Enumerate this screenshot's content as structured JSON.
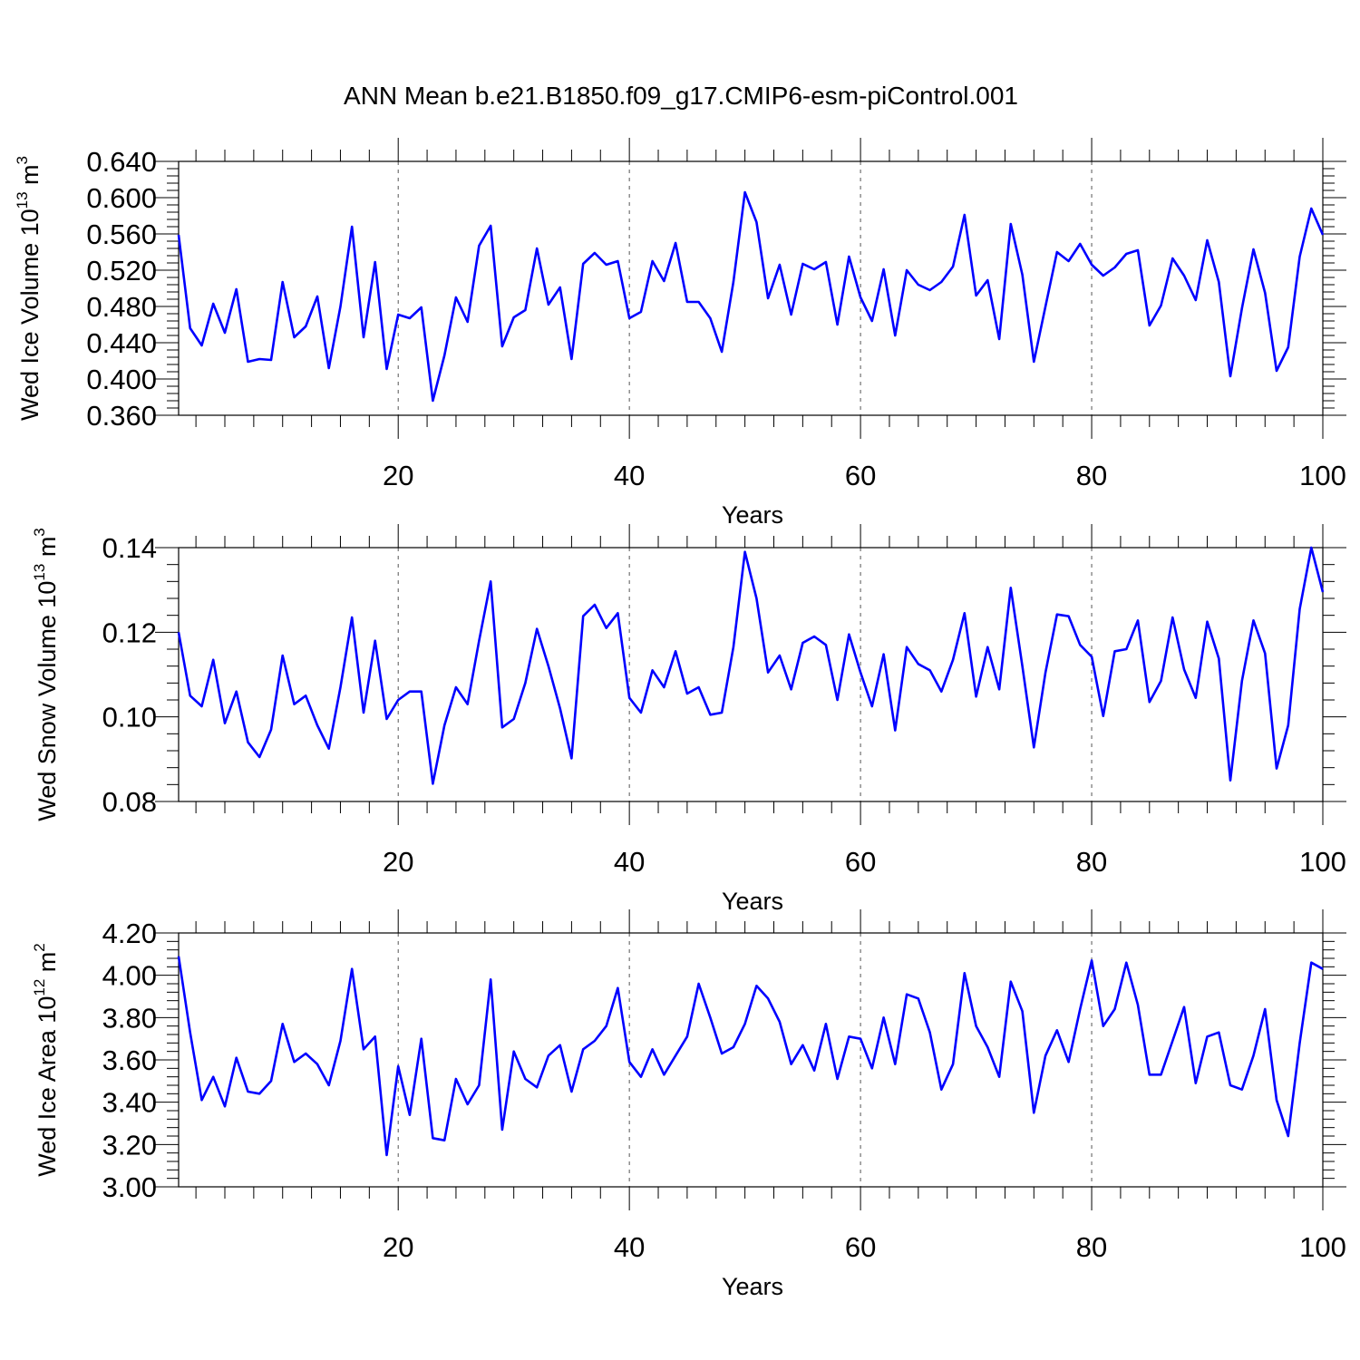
{
  "figure": {
    "title": "ANN Mean b.e21.B1850.f09_g17.CMIP6-esm-piControl.001"
  },
  "chart_data": [
    {
      "type": "line",
      "id": "ice-volume",
      "xlabel": "Years",
      "ylabel": {
        "text": "Wed Ice Volume 10",
        "sup": "13",
        "unit": " m",
        "unit_sup": "3"
      },
      "xlim": [
        1,
        100
      ],
      "ylim": [
        0.36,
        0.64
      ],
      "xticks": [
        20,
        40,
        60,
        80,
        100
      ],
      "xtick_labels": [
        "20",
        "40",
        "60",
        "80",
        "100"
      ],
      "yticks": [
        0.36,
        0.4,
        0.44,
        0.48,
        0.52,
        0.56,
        0.6,
        0.64
      ],
      "ytick_labels": [
        "0.360",
        "0.400",
        "0.440",
        "0.480",
        "0.520",
        "0.560",
        "0.600",
        "0.640"
      ],
      "grid": "vertical dashed at major x ticks",
      "series": [
        {
          "name": "Wed Ice Volume",
          "color": "#0000ff",
          "x_start": 1,
          "values": [
            0.559,
            0.456,
            0.437,
            0.483,
            0.451,
            0.499,
            0.419,
            0.422,
            0.421,
            0.507,
            0.446,
            0.458,
            0.491,
            0.412,
            0.48,
            0.568,
            0.446,
            0.529,
            0.411,
            0.471,
            0.467,
            0.479,
            0.376,
            0.426,
            0.49,
            0.463,
            0.547,
            0.569,
            0.436,
            0.468,
            0.476,
            0.544,
            0.482,
            0.501,
            0.422,
            0.527,
            0.539,
            0.526,
            0.53,
            0.467,
            0.474,
            0.53,
            0.508,
            0.55,
            0.485,
            0.485,
            0.467,
            0.43,
            0.507,
            0.606,
            0.573,
            0.489,
            0.526,
            0.471,
            0.527,
            0.521,
            0.529,
            0.46,
            0.535,
            0.49,
            0.464,
            0.521,
            0.448,
            0.52,
            0.504,
            0.498,
            0.507,
            0.524,
            0.581,
            0.492,
            0.509,
            0.444,
            0.571,
            0.515,
            0.419,
            0.48,
            0.54,
            0.53,
            0.549,
            0.526,
            0.514,
            0.523,
            0.538,
            0.542,
            0.459,
            0.481,
            0.533,
            0.514,
            0.487,
            0.553,
            0.507,
            0.403,
            0.478,
            0.543,
            0.495,
            0.409,
            0.435,
            0.535,
            0.588,
            0.559
          ]
        }
      ]
    },
    {
      "type": "line",
      "id": "snow-volume",
      "xlabel": "Years",
      "ylabel": {
        "text": "Wed Snow Volume 10",
        "sup": "13",
        "unit": " m",
        "unit_sup": "3"
      },
      "xlim": [
        1,
        100
      ],
      "ylim": [
        0.08,
        0.14
      ],
      "xticks": [
        20,
        40,
        60,
        80,
        100
      ],
      "xtick_labels": [
        "20",
        "40",
        "60",
        "80",
        "100"
      ],
      "yticks": [
        0.08,
        0.1,
        0.12,
        0.14
      ],
      "ytick_labels": [
        "0.08",
        "0.10",
        "0.12",
        "0.14"
      ],
      "grid": "vertical dashed at major x ticks",
      "series": [
        {
          "name": "Wed Snow Volume",
          "color": "#0000ff",
          "x_start": 1,
          "values": [
            0.12,
            0.105,
            0.1025,
            0.1135,
            0.0985,
            0.106,
            0.094,
            0.0905,
            0.097,
            0.1145,
            0.103,
            0.105,
            0.098,
            0.0925,
            0.107,
            0.1235,
            0.101,
            0.118,
            0.0995,
            0.104,
            0.106,
            0.106,
            0.0842,
            0.098,
            0.107,
            0.103,
            0.118,
            0.132,
            0.0975,
            0.0995,
            0.108,
            0.1208,
            0.112,
            0.102,
            0.0902,
            0.1238,
            0.1265,
            0.121,
            0.1245,
            0.1045,
            0.101,
            0.111,
            0.107,
            0.1155,
            0.1055,
            0.107,
            0.1005,
            0.101,
            0.1165,
            0.139,
            0.128,
            0.1105,
            0.1145,
            0.1065,
            0.1175,
            0.119,
            0.117,
            0.104,
            0.1195,
            0.1105,
            0.1025,
            0.1148,
            0.0968,
            0.1165,
            0.1125,
            0.111,
            0.106,
            0.1135,
            0.1245,
            0.1048,
            0.1165,
            0.1065,
            0.1305,
            0.112,
            0.0928,
            0.1105,
            0.1242,
            0.1238,
            0.117,
            0.1142,
            0.1002,
            0.1155,
            0.116,
            0.1228,
            0.1035,
            0.1085,
            0.1235,
            0.1112,
            0.1045,
            0.1225,
            0.1138,
            0.085,
            0.1085,
            0.1228,
            0.115,
            0.0878,
            0.098,
            0.1255,
            0.14,
            0.1295
          ]
        }
      ]
    },
    {
      "type": "line",
      "id": "ice-area",
      "xlabel": "Years",
      "ylabel": {
        "text": "Wed Ice Area 10",
        "sup": "12",
        "unit": " m",
        "unit_sup": "2"
      },
      "xlim": [
        1,
        100
      ],
      "ylim": [
        3.0,
        4.2
      ],
      "xticks": [
        20,
        40,
        60,
        80,
        100
      ],
      "xtick_labels": [
        "20",
        "40",
        "60",
        "80",
        "100"
      ],
      "yticks": [
        3.0,
        3.2,
        3.4,
        3.6,
        3.8,
        4.0,
        4.2
      ],
      "ytick_labels": [
        "3.00",
        "3.20",
        "3.40",
        "3.60",
        "3.80",
        "4.00",
        "4.20"
      ],
      "grid": "vertical dashed at major x ticks",
      "series": [
        {
          "name": "Wed Ice Area",
          "color": "#0000ff",
          "x_start": 1,
          "values": [
            4.09,
            3.73,
            3.41,
            3.52,
            3.38,
            3.61,
            3.45,
            3.44,
            3.5,
            3.77,
            3.59,
            3.63,
            3.58,
            3.48,
            3.69,
            4.03,
            3.65,
            3.71,
            3.15,
            3.57,
            3.34,
            3.7,
            3.23,
            3.22,
            3.51,
            3.39,
            3.48,
            3.98,
            3.27,
            3.64,
            3.51,
            3.47,
            3.62,
            3.67,
            3.45,
            3.65,
            3.69,
            3.76,
            3.94,
            3.59,
            3.52,
            3.65,
            3.53,
            3.62,
            3.71,
            3.96,
            3.8,
            3.63,
            3.66,
            3.77,
            3.95,
            3.89,
            3.78,
            3.58,
            3.67,
            3.55,
            3.77,
            3.51,
            3.71,
            3.7,
            3.56,
            3.8,
            3.58,
            3.91,
            3.89,
            3.73,
            3.46,
            3.58,
            4.01,
            3.76,
            3.66,
            3.52,
            3.97,
            3.83,
            3.35,
            3.62,
            3.74,
            3.59,
            3.84,
            4.07,
            3.76,
            3.84,
            4.06,
            3.86,
            3.53,
            3.53,
            3.69,
            3.85,
            3.49,
            3.71,
            3.73,
            3.48,
            3.46,
            3.62,
            3.84,
            3.41,
            3.24,
            3.68,
            4.06,
            4.03
          ]
        }
      ]
    }
  ]
}
